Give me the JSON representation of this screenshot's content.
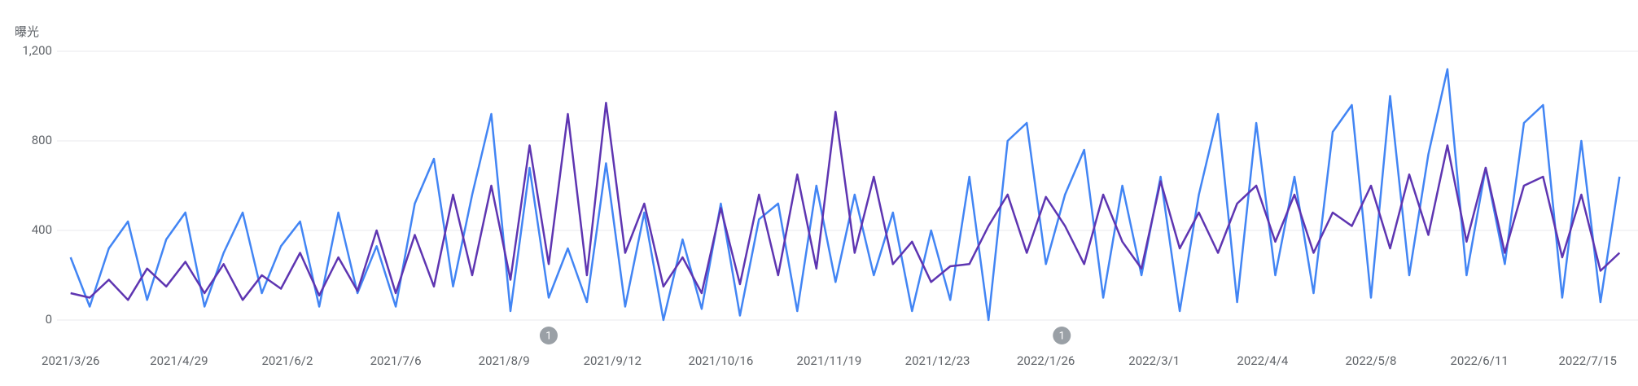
{
  "chart_data": {
    "type": "line",
    "y_label": "曝光",
    "ylim": [
      0,
      1200
    ],
    "yticks": [
      0,
      400,
      800,
      {
        "value": 1200,
        "label": "1,200"
      }
    ],
    "grid": true,
    "xlim": [
      "2021/3/23",
      "2022/7/29"
    ],
    "xticks": [
      "2021/3/26",
      "2021/4/29",
      "2021/6/2",
      "2021/7/6",
      "2021/8/9",
      "2021/9/12",
      "2021/10/16",
      "2021/11/19",
      "2021/12/23",
      "2022/1/26",
      "2022/3/1",
      "2022/4/4",
      "2022/5/8",
      "2022/6/11",
      "2022/7/15"
    ],
    "x": [
      "2021/3/26",
      "2021/4/1",
      "2021/4/7",
      "2021/4/13",
      "2021/4/19",
      "2021/4/25",
      "2021/5/1",
      "2021/5/7",
      "2021/5/13",
      "2021/5/19",
      "2021/5/25",
      "2021/5/31",
      "2021/6/6",
      "2021/6/12",
      "2021/6/18",
      "2021/6/24",
      "2021/6/30",
      "2021/7/6",
      "2021/7/12",
      "2021/7/18",
      "2021/7/24",
      "2021/7/30",
      "2021/8/5",
      "2021/8/11",
      "2021/8/17",
      "2021/8/23",
      "2021/8/29",
      "2021/9/4",
      "2021/9/10",
      "2021/9/16",
      "2021/9/22",
      "2021/9/28",
      "2021/10/4",
      "2021/10/10",
      "2021/10/16",
      "2021/10/22",
      "2021/10/28",
      "2021/11/3",
      "2021/11/9",
      "2021/11/15",
      "2021/11/21",
      "2021/11/27",
      "2021/12/3",
      "2021/12/9",
      "2021/12/15",
      "2021/12/21",
      "2021/12/27",
      "2022/1/2",
      "2022/1/8",
      "2022/1/14",
      "2022/1/20",
      "2022/1/26",
      "2022/2/1",
      "2022/2/7",
      "2022/2/13",
      "2022/2/19",
      "2022/2/25",
      "2022/3/3",
      "2022/3/9",
      "2022/3/15",
      "2022/3/21",
      "2022/3/27",
      "2022/4/2",
      "2022/4/8",
      "2022/4/14",
      "2022/4/20",
      "2022/4/26",
      "2022/5/2",
      "2022/5/8",
      "2022/5/14",
      "2022/5/20",
      "2022/5/26",
      "2022/6/1",
      "2022/6/7",
      "2022/6/13",
      "2022/6/19",
      "2022/6/25",
      "2022/7/1",
      "2022/7/7",
      "2022/7/13",
      "2022/7/19",
      "2022/7/25"
    ],
    "series": [
      {
        "color": "#4285f4",
        "values": [
          280,
          60,
          320,
          440,
          90,
          360,
          480,
          60,
          300,
          480,
          120,
          330,
          440,
          60,
          480,
          120,
          330,
          60,
          520,
          720,
          150,
          560,
          920,
          40,
          680,
          100,
          320,
          80,
          700,
          60,
          480,
          0,
          360,
          50,
          520,
          20,
          450,
          520,
          40,
          600,
          170,
          560,
          200,
          480,
          40,
          400,
          90,
          640,
          0,
          800,
          880,
          250,
          560,
          760,
          100,
          600,
          200,
          640,
          40,
          560,
          920,
          80,
          880,
          200,
          640,
          120,
          840,
          960,
          100,
          1000,
          200,
          740,
          1120,
          200,
          680,
          250,
          880,
          960,
          100,
          800,
          80,
          640
        ]
      },
      {
        "color": "#5e35b1",
        "values": [
          120,
          100,
          180,
          90,
          230,
          150,
          260,
          120,
          250,
          90,
          200,
          140,
          300,
          110,
          280,
          130,
          400,
          120,
          380,
          150,
          560,
          200,
          600,
          180,
          780,
          250,
          920,
          200,
          970,
          300,
          520,
          150,
          280,
          120,
          500,
          160,
          560,
          200,
          650,
          230,
          930,
          300,
          640,
          250,
          350,
          170,
          240,
          250,
          420,
          560,
          300,
          550,
          420,
          250,
          560,
          350,
          230,
          620,
          320,
          480,
          300,
          520,
          600,
          350,
          560,
          300,
          480,
          420,
          600,
          320,
          650,
          380,
          780,
          350,
          680,
          300,
          600,
          640,
          280,
          560,
          220,
          300
        ]
      }
    ],
    "annotations": [
      {
        "date": "2021/8/23",
        "label": "1"
      },
      {
        "date": "2022/1/31",
        "label": "1"
      }
    ]
  }
}
